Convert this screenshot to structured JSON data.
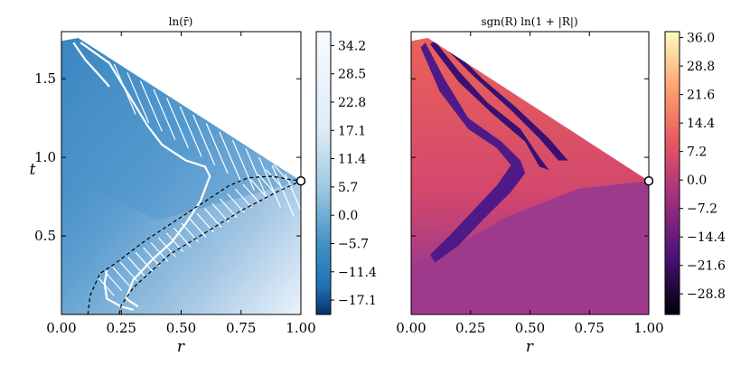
{
  "chart_data": [
    {
      "type": "heatmap",
      "title": "ln(r̄)",
      "xlabel": "r",
      "ylabel": "t",
      "xlim": [
        0.0,
        1.0
      ],
      "ylim": [
        0.0,
        1.8
      ],
      "xticks": [
        "0.00",
        "0.25",
        "0.50",
        "0.75",
        "1.00"
      ],
      "xtick_values": [
        0.0,
        0.25,
        0.5,
        0.75,
        1.0
      ],
      "yticks": [
        "0.5",
        "1.0",
        "1.5"
      ],
      "ytick_values": [
        0.5,
        1.0,
        1.5
      ],
      "colormap": "Blues_r",
      "colors": {
        "low": "#08306b",
        "mid": "#4292c6",
        "high": "#f7fbff"
      },
      "colorbar": {
        "ticks": [
          "34.2",
          "28.5",
          "22.8",
          "17.1",
          "11.4",
          "5.7",
          "0.0",
          "−5.7",
          "−11.4",
          "−17.1"
        ],
        "range": [
          -20.0,
          37.0
        ]
      },
      "domain_boundary": [
        [
          0.0,
          1.74
        ],
        [
          0.07,
          1.76
        ],
        [
          1.0,
          0.85
        ]
      ],
      "white_curves": [
        [
          [
            0.08,
            1.73
          ],
          [
            0.2,
            1.6
          ],
          [
            0.3,
            1.35
          ],
          [
            0.36,
            1.2
          ],
          [
            0.42,
            1.08
          ],
          [
            0.52,
            0.98
          ],
          [
            0.6,
            0.94
          ],
          [
            0.62,
            0.88
          ],
          [
            0.58,
            0.72
          ],
          [
            0.52,
            0.58
          ],
          [
            0.46,
            0.46
          ],
          [
            0.38,
            0.35
          ],
          [
            0.3,
            0.22
          ],
          [
            0.27,
            0.1
          ],
          [
            0.32,
            0.05
          ]
        ],
        [
          [
            0.05,
            1.73
          ],
          [
            0.1,
            1.62
          ],
          [
            0.16,
            1.52
          ],
          [
            0.2,
            1.45
          ]
        ],
        [
          [
            0.19,
            0.28
          ],
          [
            0.18,
            0.2
          ],
          [
            0.19,
            0.1
          ],
          [
            0.25,
            0.05
          ],
          [
            0.3,
            0.03
          ]
        ]
      ],
      "dashed_curve": [
        [
          0.11,
          0.0
        ],
        [
          0.12,
          0.12
        ],
        [
          0.16,
          0.26
        ],
        [
          0.22,
          0.32
        ],
        [
          0.35,
          0.47
        ],
        [
          0.5,
          0.62
        ],
        [
          0.62,
          0.74
        ],
        [
          0.7,
          0.82
        ],
        [
          0.78,
          0.87
        ],
        [
          0.88,
          0.88
        ],
        [
          0.95,
          0.86
        ],
        [
          1.0,
          0.85
        ],
        [
          0.9,
          0.78
        ],
        [
          0.75,
          0.66
        ],
        [
          0.6,
          0.52
        ],
        [
          0.45,
          0.38
        ],
        [
          0.3,
          0.17
        ],
        [
          0.25,
          0.06
        ],
        [
          0.24,
          0.0
        ]
      ],
      "marker": {
        "x": 1.0,
        "y": 0.85
      }
    },
    {
      "type": "heatmap",
      "title": "sgn(R) ln(1 + |R|)",
      "xlabel": "r",
      "ylabel": "",
      "xlim": [
        0.0,
        1.0
      ],
      "ylim": [
        0.0,
        1.8
      ],
      "xticks": [
        "0.00",
        "0.25",
        "0.50",
        "0.75",
        "1.00"
      ],
      "xtick_values": [
        0.0,
        0.25,
        0.5,
        0.75,
        1.0
      ],
      "yticks": [],
      "colormap": "magma",
      "colors": {
        "background": "#9e3a8c",
        "upper": "#e8595b",
        "band": "#5b1e8e"
      },
      "colorbar": {
        "ticks": [
          "36.0",
          "28.8",
          "21.6",
          "14.4",
          "7.2",
          "0.0",
          "−7.2",
          "−14.4",
          "−21.6",
          "−28.8"
        ],
        "range": [
          -34.0,
          37.5
        ]
      },
      "domain_boundary": [
        [
          0.0,
          1.74
        ],
        [
          0.07,
          1.76
        ],
        [
          1.0,
          0.85
        ]
      ],
      "dark_bands": [
        [
          [
            0.06,
            1.73
          ],
          [
            0.14,
            1.5
          ],
          [
            0.24,
            1.25
          ],
          [
            0.38,
            1.1
          ],
          [
            0.46,
            0.98
          ],
          [
            0.48,
            0.9
          ],
          [
            0.42,
            0.78
          ],
          [
            0.3,
            0.6
          ],
          [
            0.2,
            0.44
          ],
          [
            0.1,
            0.33
          ],
          [
            0.08,
            0.38
          ],
          [
            0.16,
            0.5
          ],
          [
            0.26,
            0.66
          ],
          [
            0.36,
            0.82
          ],
          [
            0.42,
            0.95
          ],
          [
            0.36,
            1.06
          ],
          [
            0.24,
            1.18
          ],
          [
            0.12,
            1.42
          ],
          [
            0.04,
            1.7
          ]
        ],
        [
          [
            0.1,
            1.74
          ],
          [
            0.2,
            1.55
          ],
          [
            0.32,
            1.35
          ],
          [
            0.46,
            1.18
          ],
          [
            0.54,
            1.0
          ],
          [
            0.58,
            0.92
          ],
          [
            0.54,
            0.94
          ],
          [
            0.48,
            1.1
          ],
          [
            0.34,
            1.28
          ],
          [
            0.2,
            1.48
          ],
          [
            0.08,
            1.72
          ]
        ],
        [
          [
            0.14,
            1.74
          ],
          [
            0.3,
            1.5
          ],
          [
            0.44,
            1.32
          ],
          [
            0.58,
            1.12
          ],
          [
            0.66,
            0.98
          ],
          [
            0.62,
            0.98
          ],
          [
            0.54,
            1.12
          ],
          [
            0.42,
            1.3
          ],
          [
            0.26,
            1.52
          ],
          [
            0.12,
            1.73
          ]
        ]
      ],
      "marker": {
        "x": 1.0,
        "y": 0.85
      }
    }
  ]
}
